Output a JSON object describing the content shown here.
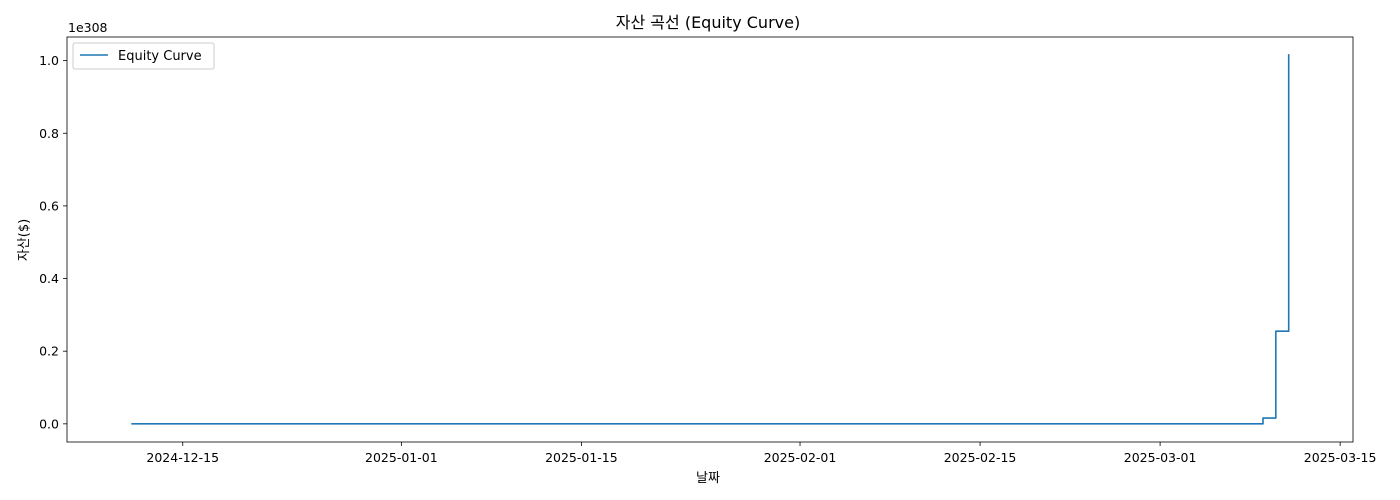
{
  "chart_data": {
    "type": "line",
    "title": "자산 곡선 (Equity Curve)",
    "xlabel": "날짜",
    "ylabel": "자산($)",
    "y_offset_label": "1e308",
    "y_scale": 1e+308,
    "xlim": [
      "2024-12-06",
      "2025-03-16"
    ],
    "ylim": [
      -0.05,
      1.065
    ],
    "x_ticks": [
      {
        "value": "2024-12-15",
        "label": "2024-12-15"
      },
      {
        "value": "2025-01-01",
        "label": "2025-01-01"
      },
      {
        "value": "2025-01-15",
        "label": "2025-01-15"
      },
      {
        "value": "2025-02-01",
        "label": "2025-02-01"
      },
      {
        "value": "2025-02-15",
        "label": "2025-02-15"
      },
      {
        "value": "2025-03-01",
        "label": "2025-03-01"
      },
      {
        "value": "2025-03-15",
        "label": "2025-03-15"
      }
    ],
    "y_ticks": [
      {
        "value": 0.0,
        "label": "0.0"
      },
      {
        "value": 0.2,
        "label": "0.2"
      },
      {
        "value": 0.4,
        "label": "0.4"
      },
      {
        "value": 0.6,
        "label": "0.6"
      },
      {
        "value": 0.8,
        "label": "0.8"
      },
      {
        "value": 1.0,
        "label": "1.0"
      }
    ],
    "grid": false,
    "legend_position": "top-left",
    "series": [
      {
        "name": "Equity Curve",
        "color": "#1f77b4",
        "step": true,
        "x": [
          "2024-12-11",
          "2025-03-08",
          "2025-03-09",
          "2025-03-09",
          "2025-03-10",
          "2025-03-10",
          "2025-03-10",
          "2025-03-11",
          "2025-03-11"
        ],
        "y": [
          0.0,
          0.0,
          0.004,
          0.016,
          0.016,
          0.128,
          0.255,
          0.509,
          1.018
        ]
      }
    ]
  }
}
